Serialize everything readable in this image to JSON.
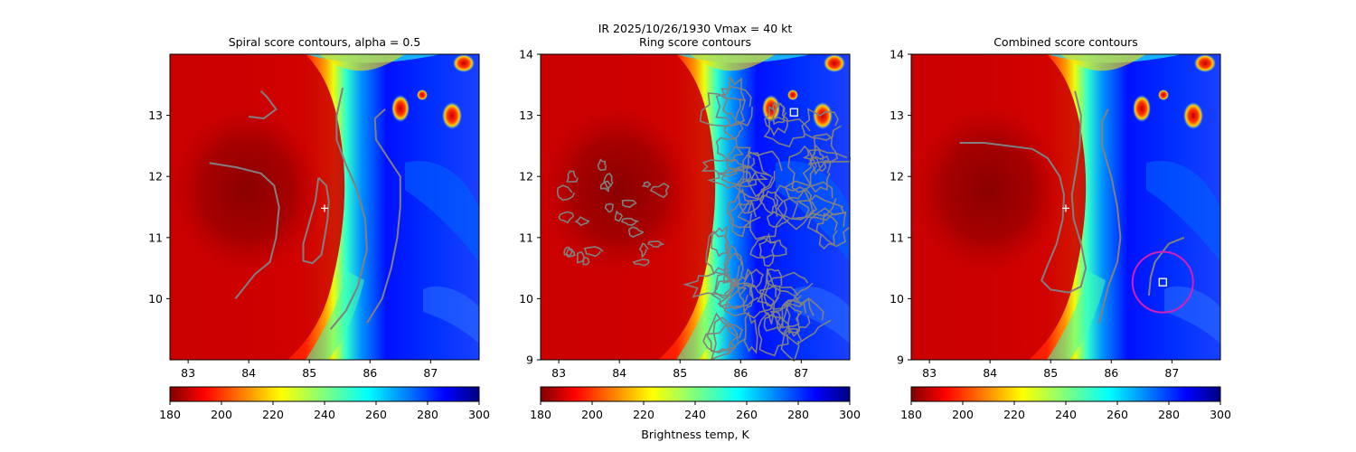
{
  "figure": {
    "suptitle_line1": "IR  2025/10/26/1930    Vmax = 40 kt"
  },
  "colorbar": {
    "ticks": [
      180,
      200,
      220,
      240,
      260,
      280,
      300
    ],
    "range": [
      180,
      300
    ],
    "label": "Brightness temp, K",
    "colormap": "jet_r"
  },
  "colors": {
    "contour": "#808080",
    "center_marker": "#ffffff",
    "ring_circle": "#d11fb8"
  },
  "panels": [
    {
      "title": "Spiral score contours, alpha =  0.5",
      "xticks": [
        83,
        84,
        85,
        86,
        87
      ],
      "yticks": [
        10,
        11,
        12,
        13
      ],
      "xlim": [
        82.7,
        87.8
      ],
      "ylim": [
        9.0,
        14.0
      ],
      "marker": {
        "type": "plus",
        "lon": 85.25,
        "lat": 11.48
      },
      "contours": [
        [
          [
            83.35,
            12.22
          ],
          [
            83.8,
            12.15
          ],
          [
            84.2,
            12.05
          ],
          [
            84.42,
            11.85
          ],
          [
            84.5,
            11.5
          ],
          [
            84.45,
            11.0
          ],
          [
            84.35,
            10.6
          ],
          [
            84.1,
            10.4
          ],
          [
            83.9,
            10.15
          ],
          [
            83.78,
            10.0
          ]
        ],
        [
          [
            84.0,
            12.98
          ],
          [
            84.25,
            12.95
          ],
          [
            84.45,
            13.1
          ],
          [
            84.3,
            13.3
          ],
          [
            84.2,
            13.4
          ]
        ],
        [
          [
            85.15,
            11.98
          ],
          [
            85.28,
            11.85
          ],
          [
            85.32,
            11.6
          ],
          [
            85.3,
            11.3
          ],
          [
            85.25,
            11.0
          ],
          [
            85.2,
            10.72
          ],
          [
            85.05,
            10.58
          ],
          [
            84.9,
            10.62
          ],
          [
            84.9,
            10.9
          ],
          [
            85.0,
            11.25
          ],
          [
            85.1,
            11.6
          ],
          [
            85.15,
            11.98
          ]
        ],
        [
          [
            85.35,
            9.5
          ],
          [
            85.6,
            9.8
          ],
          [
            85.8,
            10.2
          ],
          [
            85.95,
            10.8
          ],
          [
            85.92,
            11.3
          ],
          [
            85.78,
            11.8
          ],
          [
            85.6,
            12.2
          ],
          [
            85.45,
            12.6
          ],
          [
            85.45,
            13.0
          ],
          [
            85.55,
            13.45
          ]
        ],
        [
          [
            85.95,
            9.6
          ],
          [
            86.2,
            10.0
          ],
          [
            86.35,
            10.5
          ],
          [
            86.45,
            11.0
          ],
          [
            86.5,
            11.5
          ],
          [
            86.5,
            12.0
          ],
          [
            86.3,
            12.3
          ],
          [
            86.1,
            12.6
          ],
          [
            86.08,
            12.95
          ],
          [
            86.25,
            13.1
          ]
        ]
      ]
    },
    {
      "title": "Ring score contours",
      "xticks": [
        83,
        84,
        85,
        86,
        87
      ],
      "yticks": [
        9,
        10,
        11,
        12,
        13,
        14
      ],
      "xlim": [
        82.7,
        87.8
      ],
      "ylim": [
        9.0,
        14.0
      ],
      "marker": {
        "type": "square",
        "lon": 86.88,
        "lat": 13.05
      },
      "contours": []
    },
    {
      "title": "Combined score contours",
      "xticks": [
        83,
        84,
        85,
        86,
        87
      ],
      "yticks": [
        9,
        10,
        11,
        12,
        13,
        14
      ],
      "xlim": [
        82.7,
        87.8
      ],
      "ylim": [
        9.0,
        14.0
      ],
      "marker": {
        "type": "plus",
        "lon": 85.25,
        "lat": 11.48
      },
      "marker2": {
        "type": "square",
        "lon": 86.85,
        "lat": 10.27
      },
      "circle": {
        "lon": 86.85,
        "lat": 10.27,
        "radius_deg": 0.5
      },
      "contours": [
        [
          [
            83.5,
            12.55
          ],
          [
            83.9,
            12.55
          ],
          [
            84.3,
            12.5
          ],
          [
            84.7,
            12.45
          ],
          [
            84.95,
            12.3
          ],
          [
            85.15,
            12.0
          ],
          [
            85.22,
            11.7
          ],
          [
            85.2,
            11.3
          ],
          [
            85.1,
            10.9
          ],
          [
            84.95,
            10.55
          ],
          [
            84.85,
            10.3
          ],
          [
            85.0,
            10.15
          ],
          [
            85.3,
            10.1
          ],
          [
            85.5,
            10.2
          ],
          [
            85.58,
            10.5
          ],
          [
            85.5,
            10.9
          ],
          [
            85.38,
            11.3
          ],
          [
            85.35,
            11.7
          ],
          [
            85.42,
            12.1
          ],
          [
            85.48,
            12.5
          ],
          [
            85.5,
            13.0
          ],
          [
            85.4,
            13.4
          ]
        ],
        [
          [
            85.8,
            9.6
          ],
          [
            85.95,
            10.2
          ],
          [
            86.1,
            10.6
          ],
          [
            86.15,
            11.0
          ],
          [
            86.1,
            11.5
          ],
          [
            86.0,
            12.0
          ],
          [
            85.85,
            12.5
          ],
          [
            85.85,
            12.9
          ],
          [
            85.95,
            13.1
          ]
        ],
        [
          [
            86.62,
            10.05
          ],
          [
            86.65,
            10.35
          ],
          [
            86.72,
            10.6
          ],
          [
            86.95,
            10.9
          ],
          [
            87.2,
            11.0
          ]
        ]
      ]
    }
  ]
}
